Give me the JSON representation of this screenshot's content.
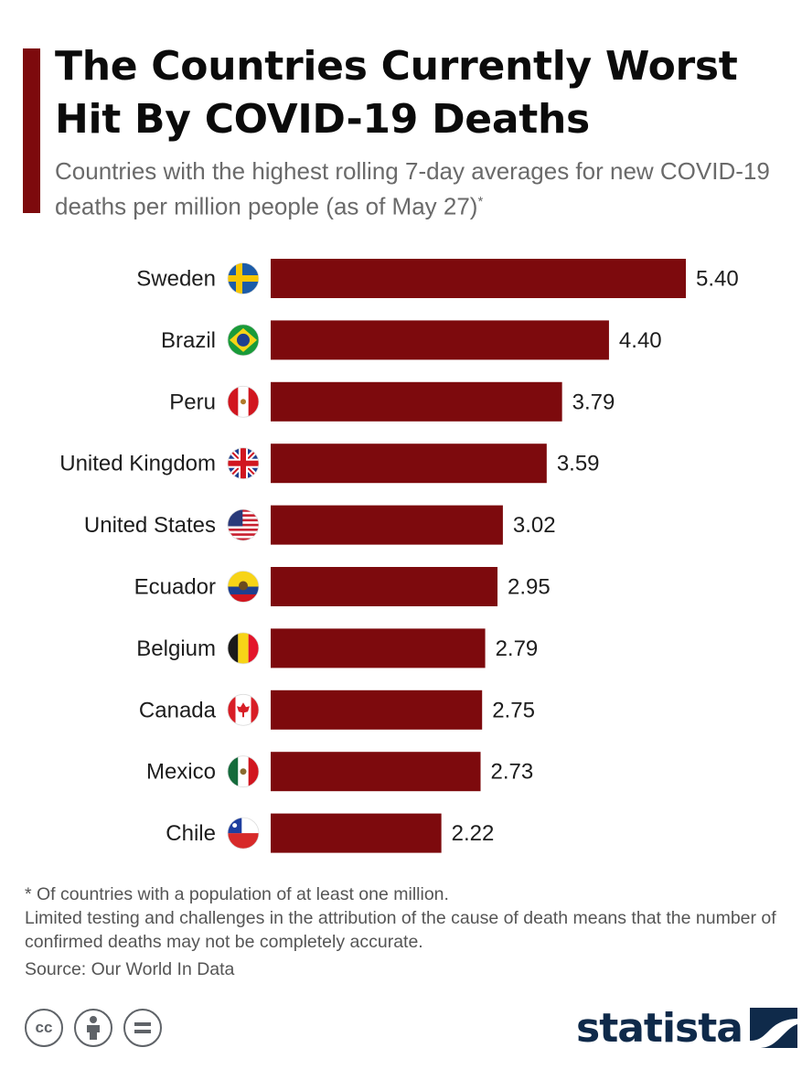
{
  "header": {
    "title": "The Countries Currently Worst Hit By COVID-19 Deaths",
    "subtitle": "Countries with the highest rolling 7-day averages for new COVID-19 deaths per million people (as of May 27)",
    "subtitle_mark": "*"
  },
  "chart_data": {
    "type": "bar",
    "orientation": "horizontal",
    "title": "The Countries Currently Worst Hit By COVID-19 Deaths",
    "categories": [
      "Sweden",
      "Brazil",
      "Peru",
      "United Kingdom",
      "United States",
      "Ecuador",
      "Belgium",
      "Canada",
      "Mexico",
      "Chile"
    ],
    "values": [
      5.4,
      4.4,
      3.79,
      3.59,
      3.02,
      2.95,
      2.79,
      2.75,
      2.73,
      2.22
    ],
    "value_labels": [
      "5.40",
      "4.40",
      "3.79",
      "3.59",
      "3.02",
      "2.95",
      "2.79",
      "2.75",
      "2.73",
      "2.22"
    ],
    "xlim": [
      0,
      5.4
    ],
    "grid": false,
    "bar_color": "#7d0a0d",
    "flags": [
      "sweden-flag-icon",
      "brazil-flag-icon",
      "peru-flag-icon",
      "united-kingdom-flag-icon",
      "united-states-flag-icon",
      "ecuador-flag-icon",
      "belgium-flag-icon",
      "canada-flag-icon",
      "mexico-flag-icon",
      "chile-flag-icon"
    ]
  },
  "footer": {
    "note_1": "* Of countries with a population of at least one million.",
    "note_2": "Limited testing and challenges in the attribution of the cause of death means that the number of confirmed deaths may not be completely accurate.",
    "source": "Source: Our World In Data",
    "cc_label": "cc",
    "brand": "statista"
  },
  "colors": {
    "accent": "#7d0a0d",
    "brand": "#0f2a4a"
  }
}
